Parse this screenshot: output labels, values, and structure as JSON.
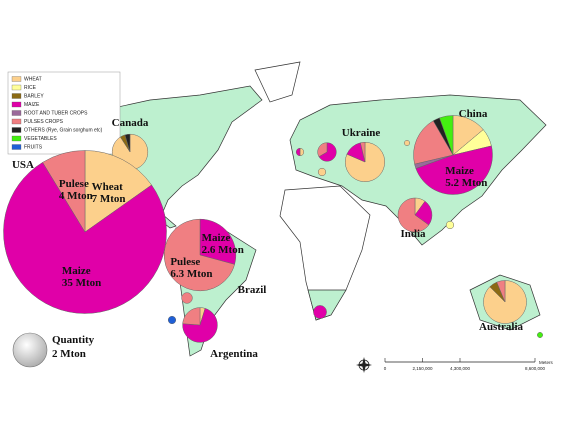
{
  "chart_data": {
    "type": "pie-map",
    "legend_position": "upper left",
    "categories": [
      "Canada",
      "USA",
      "Brazil",
      "Argentina",
      null,
      null,
      "Ukraine",
      null,
      null,
      null,
      null,
      "China",
      "India",
      null,
      null,
      "Australia",
      null
    ],
    "series": [
      {
        "name": "WHEAT",
        "color": "#fcd08c",
        "values": [
          2.0,
          7,
          null,
          0.1,
          null,
          null,
          2.2,
          null,
          0.05,
          0.1,
          0.05,
          1.5,
          0.2,
          null,
          null,
          2.8,
          null
        ],
        "slice_names": [
          null,
          "Wheat",
          null,
          null,
          null,
          null,
          null,
          null,
          null,
          null,
          null,
          null,
          null,
          null,
          null,
          null,
          null
        ],
        "value_labels": [
          null,
          "7 Mton",
          null,
          null,
          null,
          null,
          null,
          null,
          null,
          null,
          null,
          null,
          null,
          null,
          null,
          null,
          null
        ]
      },
      {
        "name": "RICE",
        "color": "#ffff99",
        "values": [
          null,
          null,
          null,
          null,
          null,
          null,
          null,
          null,
          null,
          null,
          null,
          0.8,
          null,
          0.1,
          null,
          null,
          null
        ]
      },
      {
        "name": "BARLEY",
        "color": "#8b6a14",
        "values": [
          0.1,
          null,
          null,
          null,
          null,
          null,
          null,
          null,
          null,
          null,
          null,
          null,
          null,
          null,
          null,
          0.2,
          null
        ]
      },
      {
        "name": "MAIZE",
        "color": "#e000a8",
        "values": [
          null,
          35,
          2.6,
          1.5,
          null,
          null,
          0.4,
          0.4,
          0.05,
          null,
          null,
          5.2,
          0.5,
          null,
          0.3,
          null,
          null
        ],
        "slice_names": [
          null,
          "Maize",
          "Maize",
          null,
          null,
          null,
          null,
          null,
          null,
          null,
          null,
          "Maize",
          null,
          null,
          null,
          null,
          null
        ],
        "value_labels": [
          null,
          "35 Mton",
          "2.6 Mton",
          null,
          null,
          null,
          null,
          null,
          null,
          null,
          null,
          "5.2 Mton",
          null,
          null,
          null,
          null,
          null
        ]
      },
      {
        "name": "ROOT AND TUBER CROPS",
        "color": "#9a6a9a",
        "values": [
          null,
          null,
          null,
          null,
          null,
          null,
          null,
          null,
          null,
          null,
          null,
          0.2,
          null,
          null,
          null,
          null,
          null
        ]
      },
      {
        "name": "PULSES CROPS",
        "color": "#f07f82",
        "values": [
          null,
          4,
          6.3,
          0.5,
          0.2,
          null,
          0.1,
          0.2,
          null,
          null,
          null,
          2.2,
          1.3,
          null,
          null,
          0.2,
          null
        ],
        "slice_names": [
          null,
          "Pulese",
          "Pulese",
          null,
          null,
          null,
          null,
          null,
          null,
          null,
          null,
          null,
          null,
          null,
          null,
          null,
          null
        ],
        "value_labels": [
          null,
          "4 Mton",
          "6.3 Mton",
          null,
          null,
          null,
          null,
          null,
          null,
          null,
          null,
          null,
          null,
          null,
          null,
          null,
          null
        ]
      },
      {
        "name": "OTHERS (Rye, Grain sorghum etc)",
        "color": "#222222",
        "values": [
          0.1,
          null,
          null,
          null,
          null,
          null,
          null,
          null,
          null,
          null,
          null,
          0.3,
          null,
          null,
          null,
          null,
          null
        ]
      },
      {
        "name": "VEGETABLES",
        "color": "#44ee11",
        "values": [
          null,
          null,
          null,
          null,
          null,
          null,
          null,
          null,
          null,
          null,
          null,
          0.6,
          null,
          null,
          null,
          null,
          0.05
        ]
      },
      {
        "name": "FRUITS",
        "color": "#1f5fd6",
        "values": [
          null,
          null,
          null,
          null,
          null,
          0.1,
          null,
          null,
          null,
          null,
          null,
          null,
          null,
          null,
          null,
          null,
          null
        ]
      }
    ],
    "quantity": {
      "label": "Quantity",
      "value": 2,
      "value_label": "2 Mton"
    },
    "scale": {
      "ticks": [
        0,
        {
          "value": 2150000,
          "label": "2,150,000"
        },
        {
          "value": 4300000,
          "label": "4,300,000"
        },
        {
          "value": 8600000,
          "label": "8,600,000"
        }
      ],
      "unit": "Meters"
    }
  }
}
